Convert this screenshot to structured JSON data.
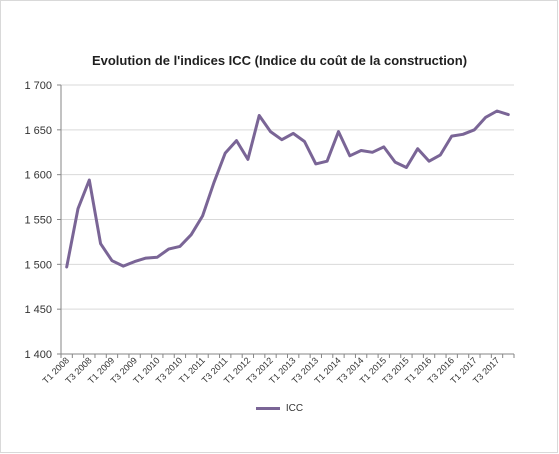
{
  "chart_data": {
    "type": "line",
    "title": "Evolution de l'indices ICC (Indice du coût de la construction)",
    "xlabel": "",
    "ylabel": "",
    "ylim": [
      1400,
      1700
    ],
    "yticks": [
      1400,
      1450,
      1500,
      1550,
      1600,
      1650,
      1700
    ],
    "ytick_labels": [
      "1 400",
      "1 450",
      "1 500",
      "1 550",
      "1 600",
      "1 650",
      "1 700"
    ],
    "x": [
      "T1 2008",
      "T2 2008",
      "T3 2008",
      "T4 2008",
      "T1 2009",
      "T2 2009",
      "T3 2009",
      "T4 2009",
      "T1 2010",
      "T2 2010",
      "T3 2010",
      "T4 2010",
      "T1 2011",
      "T2 2011",
      "T3 2011",
      "T4 2011",
      "T1 2012",
      "T2 2012",
      "T3 2012",
      "T4 2012",
      "T1 2013",
      "T2 2013",
      "T3 2013",
      "T4 2013",
      "T1 2014",
      "T2 2014",
      "T3 2014",
      "T4 2014",
      "T1 2015",
      "T2 2015",
      "T3 2015",
      "T4 2015",
      "T1 2016",
      "T2 2016",
      "T3 2016",
      "T4 2016",
      "T1 2017",
      "T2 2017",
      "T3 2017",
      "T4 2017"
    ],
    "shown_xtick_labels": [
      "T1 2008",
      "T3 2008",
      "T1 2009",
      "T3 2009",
      "T1 2010",
      "T3 2010",
      "T1 2011",
      "T3 2011",
      "T1 2012",
      "T3 2012",
      "T1 2013",
      "T3 2013",
      "T1 2014",
      "T3 2014",
      "T1 2015",
      "T3 2015",
      "T1 2016",
      "T3 2016",
      "T1 2017",
      "T3 2017"
    ],
    "series": [
      {
        "name": "ICC",
        "color": "#7a6596",
        "values": [
          1497,
          1562,
          1594,
          1523,
          1504,
          1498,
          1503,
          1507,
          1508,
          1517,
          1520,
          1533,
          1554,
          1591,
          1624,
          1638,
          1617,
          1666,
          1648,
          1639,
          1646,
          1637,
          1612,
          1615,
          1648,
          1621,
          1627,
          1625,
          1631,
          1614,
          1608,
          1629,
          1615,
          1622,
          1643,
          1645,
          1650,
          1664,
          1671,
          1667
        ]
      }
    ],
    "grid": true,
    "legend_position": "bottom"
  }
}
